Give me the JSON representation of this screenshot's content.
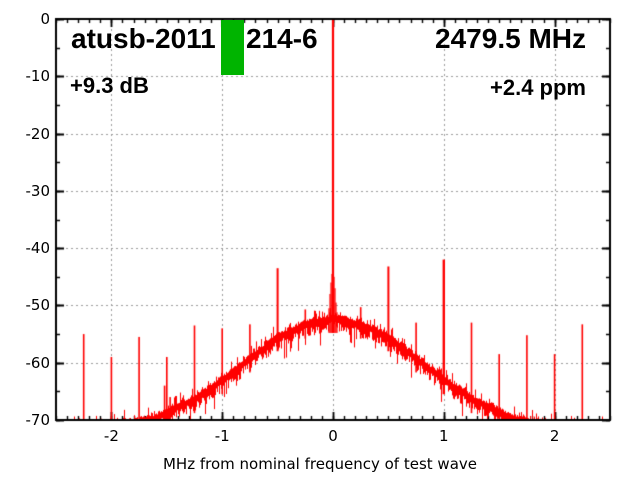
{
  "header": {
    "device_label": "atusb-2011",
    "serial_suffix": "214-6",
    "frequency": "2479.5 MHz",
    "gain": "+9.3 dB",
    "ppm_offset": "+2.4 ppm",
    "redaction_color": "#00b400"
  },
  "chart_data": {
    "type": "line",
    "title": "",
    "xlabel": "MHz from nominal frequency of test wave",
    "ylabel": "",
    "xlim": [
      -2.5,
      2.5
    ],
    "ylim": [
      -70,
      0
    ],
    "x_major_ticks": [
      -2,
      -1,
      0,
      1,
      2
    ],
    "x_minor_step": 0.1,
    "y_major_ticks": [
      0,
      -10,
      -20,
      -30,
      -40,
      -50,
      -60,
      -70
    ],
    "y_minor_step": 5,
    "grid": true,
    "trace_color": "#ff0000",
    "grid_color": "#9c9c9c",
    "carrier": {
      "f": 0,
      "peak_db": 0,
      "shoulders": [
        [
          -0.036,
          -50.5
        ],
        [
          -0.027,
          -48.0
        ],
        [
          -0.018,
          -46.0
        ],
        [
          -0.009,
          -44.5
        ],
        [
          0,
          0
        ],
        [
          0.009,
          -45.0
        ],
        [
          0.018,
          -47.0
        ],
        [
          0.027,
          -49.5
        ],
        [
          0.036,
          -51.2
        ]
      ]
    },
    "noise_floor": [
      [
        -2.5,
        -71.8
      ],
      [
        -2.25,
        -71.3
      ],
      [
        -2.0,
        -71.0
      ],
      [
        -1.75,
        -70.3
      ],
      [
        -1.6,
        -69.6
      ],
      [
        -1.5,
        -68.6
      ],
      [
        -1.25,
        -66.3
      ],
      [
        -1.0,
        -63.0
      ],
      [
        -0.75,
        -59.2
      ],
      [
        -0.5,
        -55.5
      ],
      [
        -0.25,
        -53.3
      ],
      [
        0,
        -52.2
      ],
      [
        0.25,
        -53.3
      ],
      [
        0.5,
        -55.5
      ],
      [
        0.75,
        -59.2
      ],
      [
        1.0,
        -63.0
      ],
      [
        1.25,
        -66.3
      ],
      [
        1.5,
        -68.6
      ],
      [
        1.6,
        -69.6
      ],
      [
        1.75,
        -70.3
      ],
      [
        2.0,
        -71.0
      ],
      [
        2.25,
        -71.3
      ],
      [
        2.5,
        -71.8
      ]
    ],
    "spurs": [
      {
        "f": -2.25,
        "db": -55.0
      },
      {
        "f": -2.0,
        "db": -59.0
      },
      {
        "f": -1.75,
        "db": -55.5
      },
      {
        "f": -1.52,
        "db": -64.0
      },
      {
        "f": -1.5,
        "db": -59.0
      },
      {
        "f": -1.47,
        "db": -66.0
      },
      {
        "f": -1.25,
        "db": -53.5
      },
      {
        "f": -1.0,
        "db": -54.0
      },
      {
        "f": -0.75,
        "db": -53.3
      },
      {
        "f": -0.5,
        "db": -43.5,
        "w": 2
      },
      {
        "f": -0.25,
        "db": -50.7
      },
      {
        "f": 0.25,
        "db": -50.3
      },
      {
        "f": 0.5,
        "db": -43.2,
        "w": 2
      },
      {
        "f": 0.75,
        "db": -53.0
      },
      {
        "f": 1.0,
        "db": -42.0,
        "w": 2.4
      },
      {
        "f": 1.25,
        "db": -53.0
      },
      {
        "f": 1.5,
        "db": -58.5
      },
      {
        "f": 1.75,
        "db": -55.2
      },
      {
        "f": 2.0,
        "db": -58.5
      },
      {
        "f": 2.25,
        "db": -53.3
      }
    ]
  }
}
